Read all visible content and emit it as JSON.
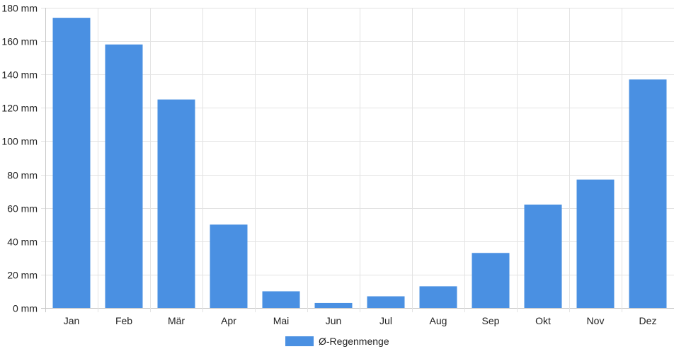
{
  "chart_data": {
    "type": "bar",
    "categories": [
      "Jan",
      "Feb",
      "Mär",
      "Apr",
      "Mai",
      "Jun",
      "Jul",
      "Aug",
      "Sep",
      "Okt",
      "Nov",
      "Dez"
    ],
    "series": [
      {
        "name": "Ø-Regenmenge",
        "values": [
          174,
          158,
          125,
          50,
          10,
          3,
          7,
          13,
          33,
          62,
          77,
          137
        ],
        "color": "#4a90e2"
      }
    ],
    "ylim": [
      0,
      180
    ],
    "yticks": [
      0,
      20,
      40,
      60,
      80,
      100,
      120,
      140,
      160,
      180
    ],
    "ytick_labels": [
      "0 mm",
      "20 mm",
      "40 mm",
      "60 mm",
      "80 mm",
      "100 mm",
      "120 mm",
      "140 mm",
      "160 mm",
      "180 mm"
    ],
    "title": "",
    "xlabel": "",
    "ylabel": "",
    "grid": true,
    "legend_position": "bottom-center"
  }
}
